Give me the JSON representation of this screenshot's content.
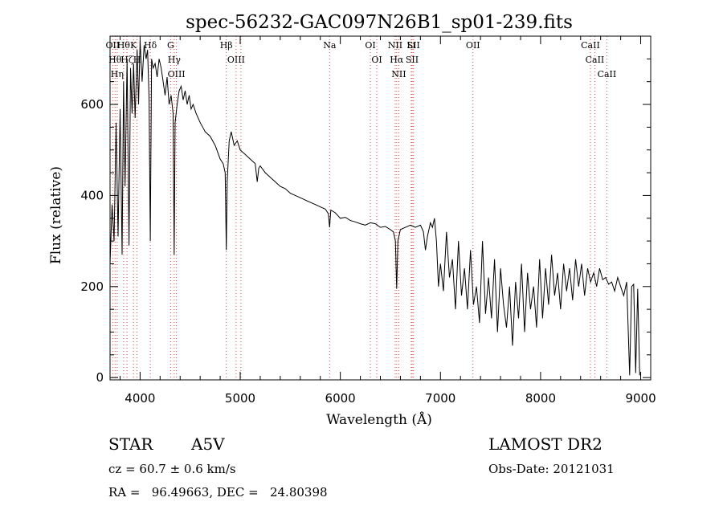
{
  "chart_data": {
    "type": "line",
    "title": "spec-56232-GAC097N26B1_sp01-239.fits",
    "xlabel": "Wavelength (Å)",
    "ylabel": "Flux (relative)",
    "xlim": [
      3700,
      9100
    ],
    "ylim": [
      -5,
      750
    ],
    "xticks": [
      4000,
      5000,
      6000,
      7000,
      8000,
      9000
    ],
    "yticks": [
      0,
      200,
      400,
      600
    ],
    "grid": false,
    "series": [
      {
        "x": [
          3700,
          3720,
          3740,
          3760,
          3780,
          3800,
          3820,
          3835,
          3850,
          3870,
          3889,
          3905,
          3920,
          3935,
          3950,
          3970,
          3985,
          4000,
          4020,
          4040,
          4060,
          4075,
          4090,
          4102,
          4115,
          4130,
          4150,
          4170,
          4190,
          4210,
          4230,
          4250,
          4270,
          4290,
          4310,
          4330,
          4340,
          4350,
          4370,
          4390,
          4410,
          4430,
          4450,
          4470,
          4490,
          4510,
          4530,
          4560,
          4600,
          4650,
          4700,
          4750,
          4800,
          4830,
          4850,
          4861,
          4870,
          4890,
          4910,
          4940,
          4970,
          5000,
          5050,
          5100,
          5150,
          5170,
          5185,
          5200,
          5250,
          5300,
          5350,
          5400,
          5450,
          5500,
          5550,
          5600,
          5650,
          5700,
          5750,
          5800,
          5850,
          5880,
          5893,
          5905,
          5950,
          6000,
          6050,
          6100,
          6150,
          6200,
          6250,
          6300,
          6350,
          6400,
          6450,
          6500,
          6530,
          6550,
          6563,
          6575,
          6600,
          6650,
          6700,
          6750,
          6800,
          6830,
          6850,
          6870,
          6900,
          6920,
          6940,
          6960,
          6980,
          7000,
          7030,
          7060,
          7090,
          7120,
          7150,
          7180,
          7210,
          7240,
          7270,
          7300,
          7330,
          7360,
          7390,
          7420,
          7450,
          7480,
          7510,
          7540,
          7570,
          7600,
          7630,
          7660,
          7690,
          7720,
          7750,
          7780,
          7810,
          7840,
          7870,
          7900,
          7930,
          7960,
          7990,
          8020,
          8050,
          8080,
          8110,
          8140,
          8170,
          8200,
          8230,
          8260,
          8290,
          8320,
          8350,
          8380,
          8410,
          8440,
          8470,
          8500,
          8530,
          8560,
          8590,
          8620,
          8650,
          8680,
          8710,
          8740,
          8770,
          8800,
          8830,
          8860,
          8890,
          8910,
          8930,
          8950,
          8970,
          8990
        ],
        "y": [
          250,
          380,
          300,
          560,
          310,
          590,
          270,
          650,
          420,
          700,
          290,
          680,
          580,
          690,
          570,
          720,
          600,
          740,
          650,
          730,
          700,
          720,
          610,
          300,
          700,
          680,
          690,
          660,
          700,
          680,
          650,
          620,
          660,
          600,
          620,
          580,
          270,
          560,
          600,
          630,
          640,
          610,
          630,
          600,
          620,
          590,
          600,
          580,
          560,
          540,
          530,
          510,
          480,
          470,
          450,
          280,
          430,
          520,
          540,
          510,
          520,
          500,
          490,
          480,
          470,
          430,
          460,
          465,
          450,
          440,
          430,
          420,
          415,
          405,
          400,
          395,
          390,
          385,
          380,
          375,
          370,
          360,
          330,
          368,
          362,
          350,
          352,
          345,
          342,
          338,
          335,
          340,
          338,
          330,
          332,
          325,
          320,
          300,
          195,
          300,
          325,
          330,
          335,
          330,
          335,
          320,
          280,
          310,
          340,
          330,
          350,
          300,
          200,
          250,
          190,
          320,
          220,
          260,
          150,
          300,
          180,
          240,
          150,
          280,
          160,
          200,
          120,
          300,
          140,
          220,
          130,
          260,
          100,
          240,
          160,
          110,
          200,
          70,
          210,
          130,
          250,
          100,
          230,
          150,
          200,
          110,
          260,
          130,
          240,
          160,
          270,
          180,
          230,
          150,
          250,
          190,
          240,
          170,
          260,
          200,
          250,
          180,
          240,
          210,
          230,
          200,
          240,
          215,
          220,
          205,
          210,
          190,
          220,
          200,
          180,
          210,
          5,
          200,
          205,
          10,
          195,
          5
        ]
      }
    ],
    "lines": [
      {
        "w": 3727,
        "labels": [
          "OII"
        ]
      },
      {
        "w": 3750,
        "labels": [
          "Hθ"
        ]
      },
      {
        "w": 3771,
        "labels": [
          "Hη"
        ]
      },
      {
        "w": 3835,
        "labels": [
          "Hθ"
        ]
      },
      {
        "w": 3869,
        "labels": [
          "Hζ"
        ]
      },
      {
        "w": 3934,
        "labels": [
          "K"
        ]
      },
      {
        "w": 3969,
        "labels": [
          "H"
        ]
      },
      {
        "w": 4102,
        "labels": [
          "Hδ"
        ]
      },
      {
        "w": 4305,
        "labels": [
          "G"
        ]
      },
      {
        "w": 4341,
        "labels": [
          "Hγ"
        ]
      },
      {
        "w": 4363,
        "labels": [
          "OIII"
        ]
      },
      {
        "w": 4861,
        "labels": [
          "Hβ"
        ]
      },
      {
        "w": 4959,
        "labels": [
          "OIII"
        ]
      },
      {
        "w": 5007,
        "labels": []
      },
      {
        "w": 5893,
        "labels": [
          "Na"
        ]
      },
      {
        "w": 6300,
        "labels": [
          "OI"
        ]
      },
      {
        "w": 6364,
        "labels": [
          "OI"
        ]
      },
      {
        "w": 6548,
        "labels": [
          "NII"
        ]
      },
      {
        "w": 6563,
        "labels": [
          "Hα"
        ]
      },
      {
        "w": 6584,
        "labels": [
          "NII"
        ]
      },
      {
        "w": 6708,
        "labels": [
          "Li"
        ]
      },
      {
        "w": 6717,
        "labels": [
          "SII"
        ]
      },
      {
        "w": 6731,
        "labels": [
          "SII"
        ]
      },
      {
        "w": 7325,
        "labels": [
          "OII"
        ]
      },
      {
        "w": 8498,
        "labels": [
          "CaII"
        ]
      },
      {
        "w": 8542,
        "labels": [
          "CaII"
        ]
      },
      {
        "w": 8662,
        "labels": [
          "CaII"
        ]
      }
    ]
  },
  "info": {
    "object_class": "STAR",
    "subclass": "A5V",
    "survey": "LAMOST DR2",
    "redshift": "cz = 60.7 ± 0.6 km/s",
    "obs_date": "Obs-Date: 20121031",
    "coords": "RA =   96.49663, DEC =   24.80398"
  }
}
